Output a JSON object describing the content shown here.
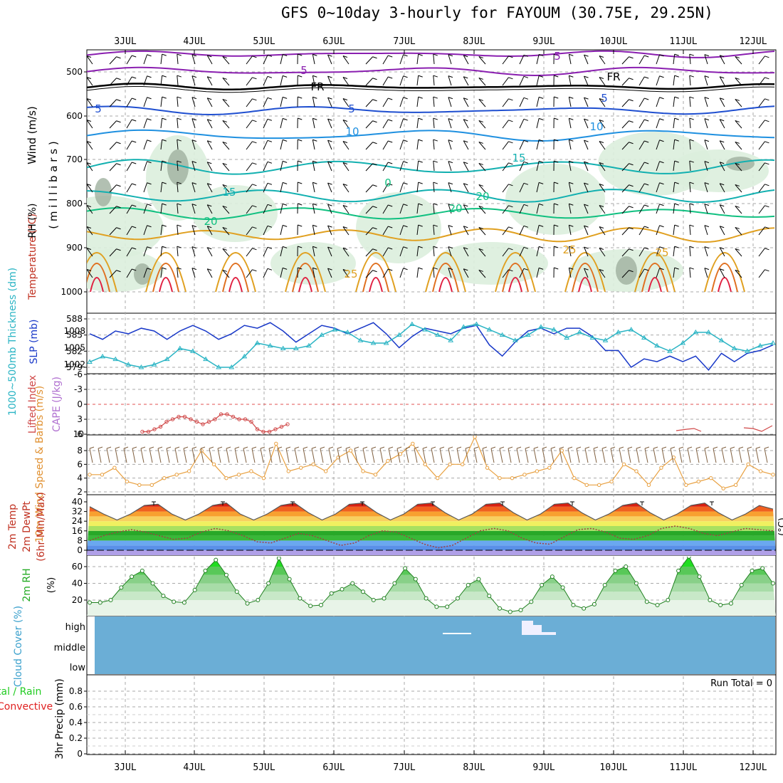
{
  "title": "GFS 0~10day 3-hourly for FAYOUM (30.75E, 29.25N)",
  "days": [
    "3JUL",
    "4JUL",
    "5JUL",
    "6JUL",
    "7JUL",
    "8JUL",
    "9JUL",
    "10JUL",
    "11JUL",
    "12JUL"
  ],
  "colors": {
    "wind_low": "#d22",
    "wind_fr": "#000",
    "purple": "#8a1fb0",
    "blue5": "#1f4fd0",
    "blue10": "#1f90e0",
    "teal15": "#12b0b0",
    "green20": "#10c080",
    "orange25": "#e0a020",
    "orange30": "#e07020",
    "red35": "#e02040",
    "rh_fill": "#dceedd",
    "thick": "#2ab4c4",
    "slp": "#1838c8",
    "li": "#d04848",
    "wind10": "#e8a040",
    "rh2m": "#22cc22",
    "cloud": "#6baed6"
  },
  "panel1": {
    "ylabel_wind": "Wind (m/s)",
    "ylabel_temp": "Temperature (°C)",
    "ylabel_rh": "RH (%)",
    "ylabel_mb": "( m i l l i b a r s )",
    "yticks": [
      "500",
      "600",
      "700",
      "800",
      "900",
      "1000"
    ],
    "contour_labels": [
      "5",
      "5",
      "FR",
      "FR",
      "5",
      "5",
      "5",
      "10",
      "10",
      "15",
      "15",
      "20",
      "20",
      "20",
      "25",
      "25",
      "25",
      "0"
    ]
  },
  "panel2": {
    "ylabel_thick": "1000~500mb Thickness (dm)",
    "ylabel_slp": "SLP (mb)",
    "yticks_left": [
      "588",
      "585",
      "582",
      "579"
    ],
    "yticks_right": [
      "1008",
      "1005",
      "1002"
    ]
  },
  "panel3": {
    "ylabel_li": "Lifted Index",
    "ylabel_cape": "CAPE (J/kg)",
    "yticks": [
      "-6",
      "-3",
      "0",
      "3",
      "6"
    ],
    "ytick_right": "10"
  },
  "panel4": {
    "ylabel": "10m Wind Speed & Barbs (m/s)",
    "yticks": [
      "8",
      "6",
      "4",
      "2"
    ]
  },
  "panel5": {
    "ylabel1": "2m Temp",
    "ylabel2": "2m DewPt",
    "ylabel3": "(6hr Min/Max)",
    "unit": "(°C)",
    "yticks": [
      "40",
      "32",
      "24",
      "16",
      "8",
      "0"
    ]
  },
  "panel6": {
    "ylabel": "2m RH",
    "unit": "(%)",
    "yticks": [
      "60",
      "40",
      "20"
    ]
  },
  "panel7": {
    "ylabel": "Cloud Cover (%)",
    "levels": [
      "high",
      "middle",
      "low"
    ]
  },
  "panel8": {
    "ylabel1": "tal / Rain",
    "ylabel2": "Convective",
    "ylabel3": "3hr Precip (mm)",
    "run_total": "Run Total = 0",
    "yticks": [
      "0.8",
      "0.6",
      "0.4",
      "0.2",
      "0"
    ]
  },
  "chart_data": [
    {
      "type": "line",
      "name": "slp",
      "series": [
        {
          "name": "SLP (mb)",
          "values": [
            1007.5,
            1006.5,
            1008,
            1007.5,
            1008.5,
            1008,
            1006.5,
            1008,
            1009,
            1008,
            1006.5,
            1007.5,
            1009,
            1008.5,
            1009.5,
            1008,
            1006,
            1007.5,
            1009,
            1008.5,
            1007.5,
            1008.5,
            1009.5,
            1007.5,
            1005,
            1007,
            1008.5,
            1008,
            1007.5,
            1008.5,
            1009,
            1005.5,
            1003.5,
            1006,
            1008,
            1008.5,
            1007.5,
            1008.5,
            1008.5,
            1007,
            1004.5,
            1004.5,
            1001.5,
            1003,
            1002.5,
            1003.5,
            1002.5,
            1003.5,
            1001,
            1004,
            1002.5,
            1004,
            1004.5,
            1005.5
          ]
        }
      ]
    },
    {
      "type": "line",
      "name": "thickness",
      "series": [
        {
          "name": "1000~500mb Thickness (dm)",
          "values": [
            580,
            581,
            580.5,
            579.5,
            579,
            579.5,
            580.5,
            582.5,
            582,
            580.5,
            579,
            579,
            581,
            583.5,
            583,
            582.5,
            582.5,
            583,
            585,
            586,
            585.5,
            584,
            583.5,
            583.5,
            585,
            587,
            586,
            585,
            584,
            586.5,
            587,
            586,
            585,
            584,
            585,
            586.5,
            586,
            584.5,
            585.5,
            584.5,
            584,
            585.5,
            586,
            584.5,
            583,
            582,
            583.5,
            585.5,
            585.5,
            584,
            582.5,
            582,
            583,
            583.5
          ]
        }
      ]
    },
    {
      "type": "line",
      "name": "wind10m",
      "series": [
        {
          "name": "10m wind speed (m/s)",
          "values": [
            4.5,
            4.5,
            5.5,
            3.5,
            3,
            3,
            4,
            4.5,
            5,
            8,
            6,
            4,
            4.5,
            5,
            4,
            9,
            5,
            5.5,
            6,
            5,
            7,
            8,
            5,
            4.5,
            6.5,
            7.5,
            9,
            6,
            4,
            6,
            6,
            10,
            5.5,
            4,
            4,
            4.5,
            5,
            5.5,
            8,
            4,
            3,
            3,
            3.5,
            6,
            5,
            3,
            5.5,
            7,
            3,
            3.5,
            4,
            2.5,
            3,
            6,
            5,
            4.5
          ]
        }
      ]
    },
    {
      "type": "area",
      "name": "rh2m",
      "series": [
        {
          "name": "2m RH (%)",
          "values": [
            17,
            17,
            20,
            35,
            48,
            55,
            40,
            25,
            18,
            17,
            32,
            55,
            68,
            50,
            30,
            16,
            20,
            40,
            70,
            45,
            22,
            13,
            14,
            28,
            33,
            40,
            30,
            20,
            22,
            40,
            58,
            45,
            22,
            12,
            12,
            22,
            38,
            45,
            25,
            10,
            6,
            8,
            18,
            38,
            48,
            35,
            14,
            10,
            15,
            38,
            55,
            60,
            40,
            18,
            14,
            20,
            55,
            72,
            48,
            20,
            14,
            16,
            38,
            55,
            58,
            40
          ]
        }
      ]
    },
    {
      "type": "line",
      "name": "temp2m",
      "series": [
        {
          "name": "2m Temp (°C)",
          "values": [
            36,
            30,
            25,
            30,
            37,
            38,
            30,
            25,
            30,
            37,
            39,
            30,
            25,
            30,
            37,
            39,
            31,
            25,
            30,
            38,
            39,
            31,
            25,
            30,
            38,
            39,
            31,
            25,
            30,
            38,
            39,
            31,
            25,
            30,
            38,
            39,
            31,
            25,
            30,
            37,
            39,
            31,
            25,
            30,
            37,
            39,
            31,
            25,
            30,
            37,
            34
          ]
        },
        {
          "name": "2m DewPt (°C)",
          "values": [
            8,
            12,
            15,
            17,
            15,
            12,
            9,
            10,
            15,
            18,
            16,
            12,
            7,
            6,
            10,
            14,
            12,
            8,
            4,
            6,
            12,
            16,
            15,
            10,
            5,
            2,
            4,
            10,
            16,
            18,
            16,
            10,
            6,
            5,
            11,
            17,
            18,
            15,
            10,
            9,
            12,
            18,
            20,
            18,
            14,
            12,
            15,
            18,
            17,
            16
          ]
        }
      ]
    },
    {
      "type": "line",
      "name": "lifted_index",
      "series": [
        {
          "name": "Lifted Index",
          "values": [
            5.5,
            5.5,
            5,
            4.5,
            3.5,
            3,
            2.5,
            2.5,
            3,
            3.5,
            4,
            3.5,
            3,
            2,
            2,
            2.5,
            3,
            3,
            3.5,
            5,
            5.5,
            5.5,
            5,
            4.5,
            4
          ]
        }
      ]
    }
  ]
}
